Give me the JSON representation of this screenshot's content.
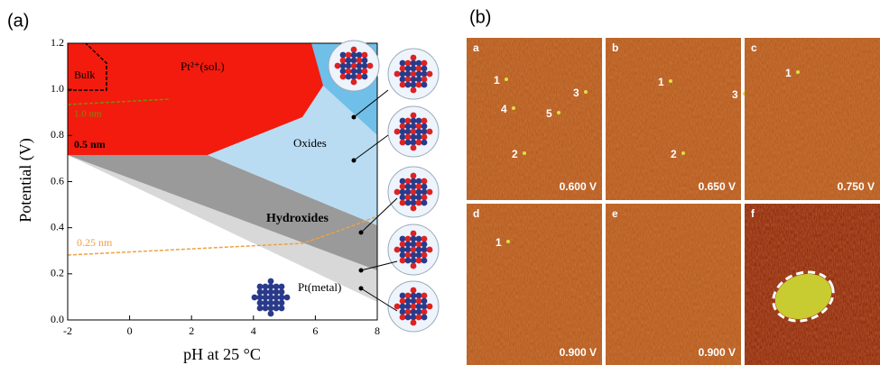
{
  "panel_a": {
    "label": "(a)",
    "xlabel": "pH at 25 °C",
    "ylabel": "Potential (V)",
    "xlim": [
      -2,
      8
    ],
    "ylim": [
      0,
      1.2
    ],
    "xticks": [
      -2,
      0,
      2,
      4,
      6,
      8
    ],
    "yticks": [
      {
        "value": 0,
        "label": "0.0"
      },
      0.2,
      0.4,
      0.6,
      0.8,
      {
        "value": 1,
        "label": "1.0"
      },
      1.2
    ],
    "regions": [
      "Bulk",
      "Pt²⁺(sol.)",
      "1.0 nm",
      "0.5 nm",
      "Oxides",
      "Hydroxides",
      "0.25 nm",
      "Pt(metal)"
    ]
  },
  "panel_b": {
    "label": "(b)",
    "images": [
      {
        "letter": "a",
        "voltage": "0.600 V",
        "markers": [
          "1",
          "4",
          "5",
          "3",
          "2"
        ]
      },
      {
        "letter": "b",
        "voltage": "0.650 V",
        "markers": [
          "1",
          "3",
          "2"
        ]
      },
      {
        "letter": "c",
        "voltage": "0.750 V",
        "markers": [
          "1"
        ]
      },
      {
        "letter": "d",
        "voltage": "0.900 V",
        "markers": [
          "1"
        ]
      },
      {
        "letter": "e",
        "voltage": "0.900 V",
        "markers": []
      },
      {
        "letter": "f",
        "markers": []
      }
    ]
  }
}
